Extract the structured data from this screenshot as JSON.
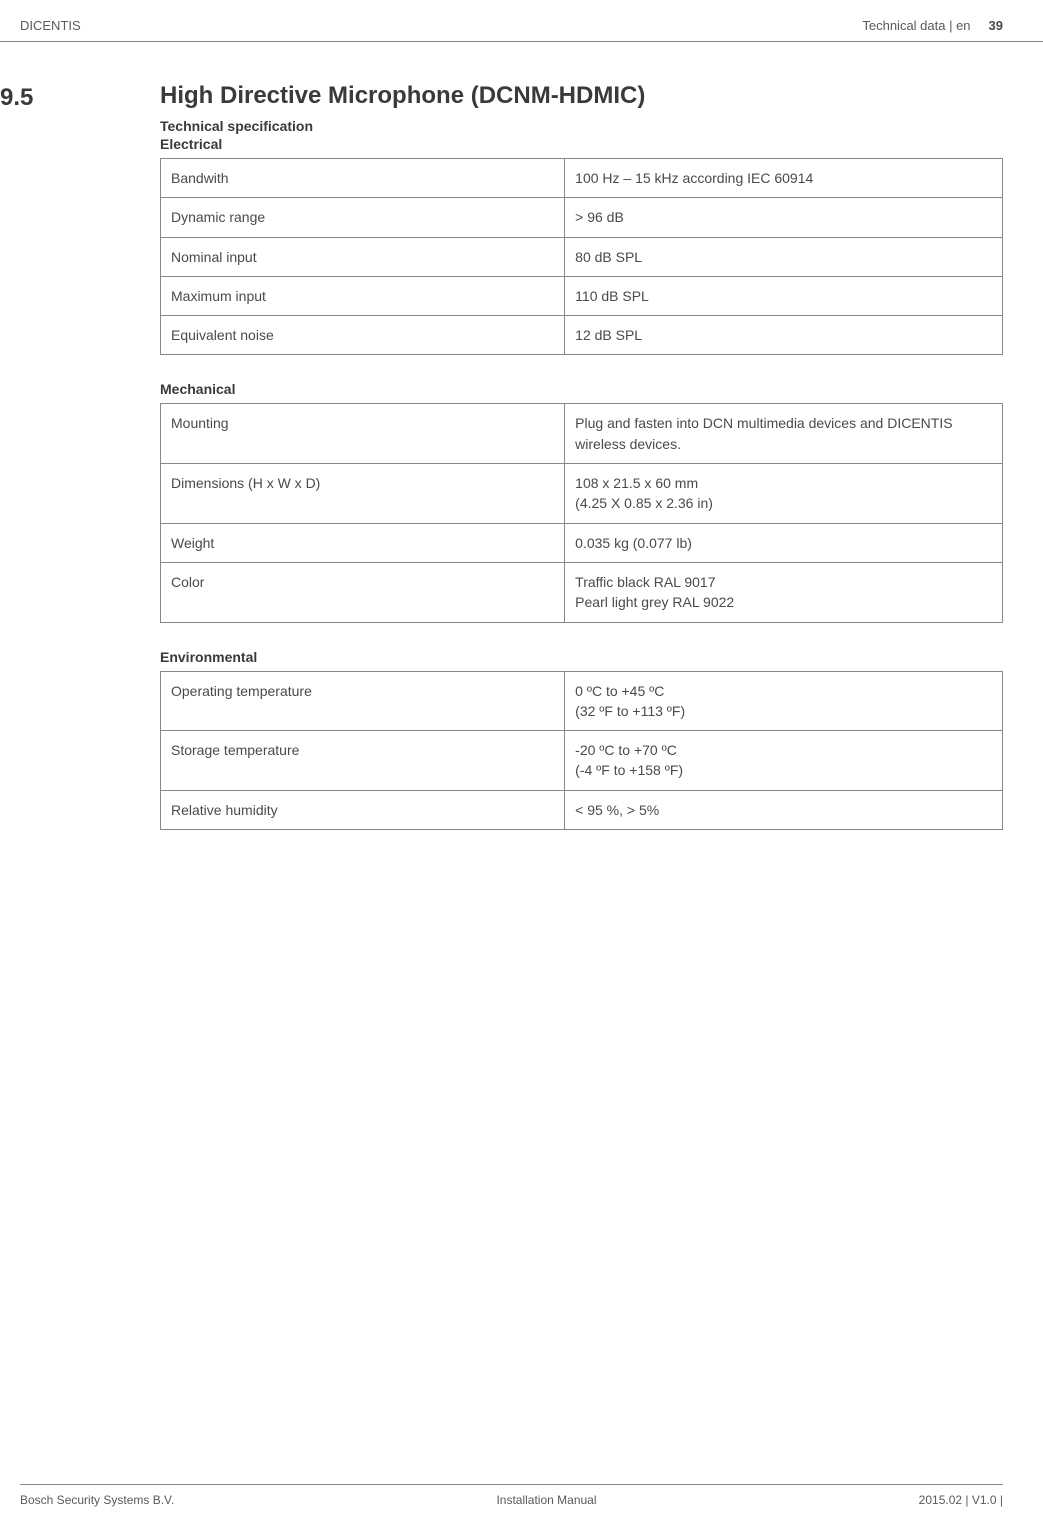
{
  "header": {
    "left": "DICENTIS",
    "right_label": "Technical data | en",
    "page_number": "39"
  },
  "section": {
    "number": "9.5",
    "title": "High Directive Microphone (DCNM-HDMIC)",
    "subtitle": "Technical specification"
  },
  "groups": [
    {
      "heading": "Electrical",
      "rows": [
        {
          "label": "Bandwith",
          "value": "100 Hz – 15 kHz according IEC 60914"
        },
        {
          "label": "Dynamic range",
          "value": "> 96 dB"
        },
        {
          "label": "Nominal input",
          "value": "80 dB SPL"
        },
        {
          "label": "Maximum input",
          "value": "110 dB SPL"
        },
        {
          "label": "Equivalent noise",
          "value": "12 dB SPL"
        }
      ]
    },
    {
      "heading": "Mechanical",
      "rows": [
        {
          "label": "Mounting",
          "value": "Plug and fasten into DCN multimedia devices and DICENTIS wireless devices."
        },
        {
          "label": "Dimensions (H x W x D)",
          "value": "108 x 21.5 x 60 mm\n(4.25 X 0.85 x 2.36 in)"
        },
        {
          "label": "Weight",
          "value": "0.035 kg (0.077 lb)"
        },
        {
          "label": "Color",
          "value": "Traffic black RAL 9017\nPearl light grey RAL 9022"
        }
      ]
    },
    {
      "heading": "Environmental",
      "rows": [
        {
          "label": "Operating temperature",
          "value": "0 ºC to +45 ºC\n(32 ºF to +113 ºF)"
        },
        {
          "label": "Storage temperature",
          "value": "-20 ºC to +70 ºC\n(-4 ºF to +158 ºF)"
        },
        {
          "label": "Relative humidity",
          "value": "< 95 %, > 5%"
        }
      ]
    }
  ],
  "footer": {
    "left": "Bosch Security Systems B.V.",
    "center": "Installation Manual",
    "right": "2015.02 | V1.0 |"
  }
}
